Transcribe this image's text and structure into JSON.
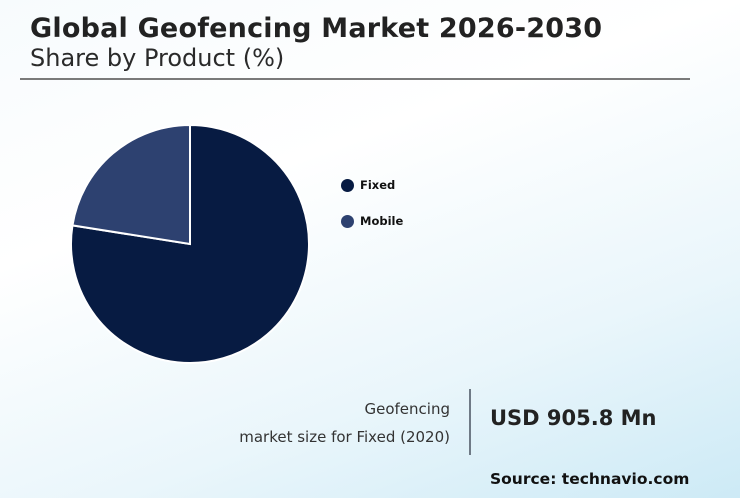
{
  "header": {
    "title": "Global Geofencing Market 2026-2030",
    "subtitle": "Share by Product (%)"
  },
  "legend": [
    {
      "label": "Fixed",
      "color": "#071b42"
    },
    {
      "label": "Mobile",
      "color": "#2d4170"
    }
  ],
  "stat": {
    "label_line1": "Geofencing",
    "label_line2": "market size for Fixed (2020)",
    "value": "USD 905.8 Mn"
  },
  "source": "Source: technavio.com",
  "chart_data": {
    "type": "pie",
    "title": "Global Geofencing Market 2026-2030",
    "subtitle": "Share by Product (%)",
    "categories": [
      "Fixed",
      "Mobile"
    ],
    "values": [
      77.5,
      22.5
    ],
    "colors": [
      "#071b42",
      "#2d4170"
    ],
    "legend_position": "right",
    "start_angle": "12 o'clock, Mobile counterclockwise"
  }
}
